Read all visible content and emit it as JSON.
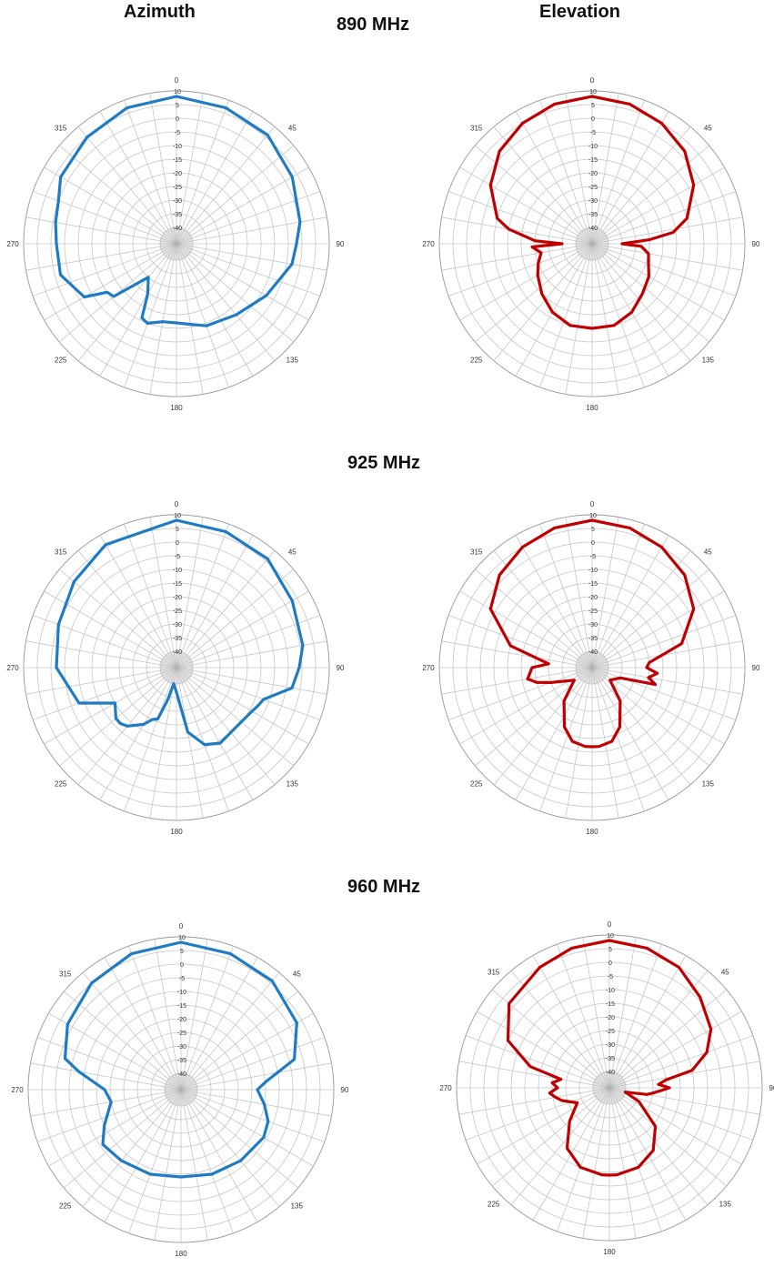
{
  "headers": {
    "azimuth": "Azimuth",
    "elevation": "Elevation"
  },
  "frequencies": [
    "890 MHz",
    "925 MHz",
    "960 MHz"
  ],
  "colors": {
    "azimuth": "#1f7bc4",
    "elevation": "#c00000",
    "grid": "#c6c6c6"
  },
  "chart_data": [
    {
      "type": "polar-line",
      "panel": "890 MHz / Azimuth",
      "angle_labels": [
        "0",
        "45",
        "90",
        "135",
        "180",
        "225",
        "270",
        "315"
      ],
      "radial_labels": [
        "10",
        "5",
        "0",
        "-5",
        "-10",
        "-15",
        "-20",
        "-25",
        "-30",
        "-35",
        "-40"
      ],
      "rlim": [
        -40,
        10
      ],
      "grid": true,
      "theta_deg": [
        0,
        20,
        40,
        60,
        80,
        90,
        100,
        120,
        140,
        160,
        170,
        180,
        190,
        200,
        205,
        210,
        220,
        230,
        235,
        240,
        255,
        270,
        280,
        290,
        300,
        320,
        340,
        360
      ],
      "gain_db": [
        8,
        7,
        6,
        3,
        0,
        -2,
        -3,
        -8,
        -12,
        -14,
        -16,
        -17,
        -17,
        -15,
        -16,
        -25,
        -30,
        -16,
        -15,
        -7,
        -2,
        -2,
        -1,
        0,
        3,
        5,
        7,
        8
      ]
    },
    {
      "type": "polar-line",
      "panel": "890 MHz / Elevation",
      "angle_labels": [
        "0",
        "45",
        "90",
        "135",
        "180",
        "225",
        "270",
        "315"
      ],
      "radial_labels": [
        "10",
        "5",
        "0",
        "-5",
        "-10",
        "-15",
        "-20",
        "-25",
        "-30",
        "-35",
        "-40"
      ],
      "rlim": [
        -40,
        10
      ],
      "grid": true,
      "theta_deg": [
        0,
        15,
        30,
        45,
        60,
        75,
        82,
        86,
        90,
        93,
        100,
        110,
        120,
        135,
        150,
        165,
        180,
        195,
        210,
        225,
        240,
        250,
        260,
        267,
        270,
        273,
        280,
        285,
        300,
        315,
        330,
        345,
        360
      ],
      "gain_db": [
        8,
        7,
        5,
        2,
        -3,
        -10,
        -16,
        -25,
        -35,
        -28,
        -25,
        -24,
        -22,
        -20,
        -17,
        -15,
        -15,
        -15,
        -17,
        -20,
        -23,
        -25,
        -27,
        -24,
        -35,
        -25,
        -15,
        -10,
        -3,
        2,
        5,
        7,
        8
      ]
    },
    {
      "type": "polar-line",
      "panel": "925 MHz / Azimuth",
      "angle_labels": [
        "0",
        "45",
        "90",
        "135",
        "180",
        "225",
        "270",
        "315"
      ],
      "radial_labels": [
        "10",
        "5",
        "0",
        "-5",
        "-10",
        "-15",
        "-20",
        "-25",
        "-30",
        "-35",
        "-40"
      ],
      "rlim": [
        -40,
        10
      ],
      "grid": true,
      "theta_deg": [
        0,
        20,
        40,
        60,
        80,
        90,
        100,
        110,
        115,
        120,
        130,
        140,
        150,
        160,
        170,
        180,
        190,
        195,
        200,
        205,
        210,
        220,
        225,
        230,
        240,
        250,
        270,
        290,
        310,
        330,
        360
      ],
      "gain_db": [
        8,
        7,
        6,
        3,
        1,
        -1,
        -3,
        -12,
        -13,
        -14,
        -15,
        -15,
        -14,
        -16,
        -22,
        -37,
        -40,
        -34,
        -26,
        -25,
        -22,
        -18,
        -17,
        -17,
        -20,
        -8,
        -2,
        0,
        3,
        6,
        8
      ]
    },
    {
      "type": "polar-line",
      "panel": "925 MHz / Elevation",
      "angle_labels": [
        "0",
        "45",
        "90",
        "135",
        "180",
        "225",
        "270",
        "315"
      ],
      "radial_labels": [
        "10",
        "5",
        "0",
        "-5",
        "-10",
        "-15",
        "-20",
        "-25",
        "-30",
        "-35",
        "-40"
      ],
      "rlim": [
        -40,
        10
      ],
      "grid": true,
      "theta_deg": [
        0,
        15,
        30,
        45,
        60,
        75,
        85,
        90,
        95,
        100,
        105,
        110,
        125,
        140,
        155,
        165,
        175,
        180,
        185,
        195,
        205,
        220,
        235,
        250,
        255,
        260,
        270,
        275,
        285,
        300,
        315,
        330,
        345,
        360
      ],
      "gain_db": [
        8,
        7,
        5,
        2,
        -3,
        -12,
        -25,
        -26,
        -22,
        -25,
        -22,
        -35,
        -38,
        -30,
        -22,
        -18,
        -17,
        -17,
        -17,
        -18,
        -22,
        -30,
        -38,
        -30,
        -25,
        -22,
        -24,
        -30,
        -15,
        -3,
        2,
        5,
        7,
        8
      ]
    },
    {
      "type": "polar-line",
      "panel": "960 MHz / Azimuth",
      "angle_labels": [
        "0",
        "45",
        "90",
        "135",
        "180",
        "225",
        "270",
        "315"
      ],
      "radial_labels": [
        "10",
        "5",
        "0",
        "-5",
        "-10",
        "-15",
        "-20",
        "-25",
        "-30",
        "-35",
        "-40"
      ],
      "rlim": [
        -40,
        10
      ],
      "grid": true,
      "theta_deg": [
        0,
        20,
        40,
        60,
        75,
        85,
        90,
        100,
        110,
        120,
        140,
        160,
        180,
        200,
        220,
        235,
        245,
        260,
        270,
        280,
        285,
        300,
        320,
        340,
        360
      ],
      "gain_db": [
        8,
        7,
        6,
        3,
        -3,
        -15,
        -18,
        -15,
        -12,
        -11,
        -12,
        -13,
        -14,
        -13,
        -12,
        -11,
        -15,
        -20,
        -18,
        -8,
        -2,
        2,
        5,
        7,
        8
      ]
    },
    {
      "type": "polar-line",
      "panel": "960 MHz / Elevation",
      "angle_labels": [
        "0",
        "45",
        "90",
        "135",
        "180",
        "225",
        "270",
        "315"
      ],
      "radial_labels": [
        "10",
        "5",
        "0",
        "-5",
        "-10",
        "-15",
        "-20",
        "-25",
        "-30",
        "-35",
        "-40"
      ],
      "rlim": [
        -40,
        10
      ],
      "grid": true,
      "theta_deg": [
        0,
        15,
        30,
        45,
        60,
        70,
        78,
        82,
        86,
        90,
        93,
        97,
        100,
        105,
        115,
        130,
        145,
        160,
        175,
        180,
        185,
        200,
        215,
        230,
        245,
        255,
        260,
        265,
        270,
        275,
        280,
        285,
        295,
        310,
        330,
        345,
        360
      ],
      "gain_db": [
        8,
        7,
        5,
        1,
        -3,
        -8,
        -15,
        -25,
        -28,
        -24,
        -27,
        -30,
        -32,
        -40,
        -34,
        -24,
        -18,
        -15,
        -14,
        -14,
        -14,
        -15,
        -19,
        -27,
        -33,
        -28,
        -26,
        -24,
        -27,
        -25,
        -28,
        -16,
        -5,
        2,
        5,
        7,
        8
      ]
    }
  ]
}
